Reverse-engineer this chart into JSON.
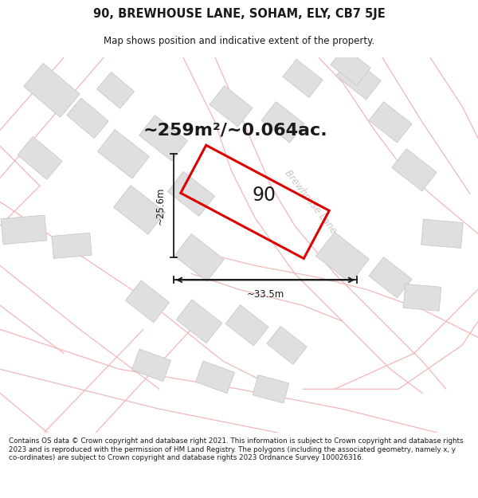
{
  "title_line1": "90, BREWHOUSE LANE, SOHAM, ELY, CB7 5JE",
  "title_line2": "Map shows position and indicative extent of the property.",
  "area_text": "~259m²/~0.064ac.",
  "plot_number": "90",
  "dim_width": "~33.5m",
  "dim_height": "~25.6m",
  "street_label": "Brewhouse Lane",
  "footer_text": "Contains OS data © Crown copyright and database right 2021. This information is subject to Crown copyright and database rights 2023 and is reproduced with the permission of HM Land Registry. The polygons (including the associated geometry, namely x, y co-ordinates) are subject to Crown copyright and database rights 2023 Ordnance Survey 100026316.",
  "map_bg": "#f7f6f6",
  "road_outline_color": "#f0b8b8",
  "building_fill": "#e0dfdf",
  "building_edge": "#c8c8c8",
  "plot_edge_color": "#dd0000",
  "dim_line_color": "#1a1a1a",
  "street_text_color": "#c8c0c0",
  "area_text_color": "#1a1a1a",
  "plot_num_color": "#1a1a1a",
  "title_color": "#1a1a1a",
  "footer_color": "#1a1a1a",
  "bg_white": "#ffffff"
}
